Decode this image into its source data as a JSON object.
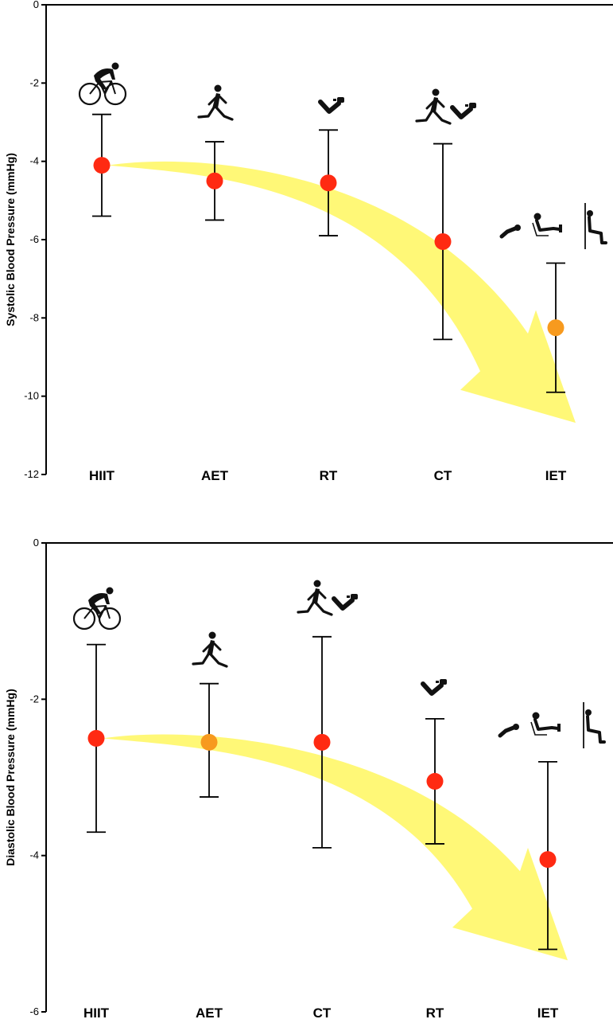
{
  "colors": {
    "point_red": "#FF2A12",
    "point_orange": "#F79A1E",
    "arrow_yellow": "#FFF768",
    "axis": "#000000",
    "silhouette": "#111111"
  },
  "chart_data": [
    {
      "type": "scatter",
      "subtype": "point-estimate-with-error-bars",
      "title": "",
      "ylabel": "Systolic Blood Pressure (mmHg)",
      "xlabel": "",
      "ylim": [
        -12,
        0
      ],
      "yticks": [
        0,
        -2,
        -4,
        -6,
        -8,
        -10,
        -12
      ],
      "yticks_labels": [
        "0",
        "-2",
        "-4",
        "-6",
        "-8",
        "-10",
        "-12"
      ],
      "grid": false,
      "categories": [
        "HIIT",
        "AET",
        "RT",
        "CT",
        "IET"
      ],
      "values": [
        -4.1,
        -4.5,
        -4.55,
        -6.05,
        -8.25
      ],
      "lower": [
        -5.4,
        -5.5,
        -5.9,
        -8.55,
        -9.9
      ],
      "upper": [
        -2.8,
        -3.5,
        -3.2,
        -3.55,
        -6.6
      ],
      "marker_colors": [
        "red",
        "red",
        "red",
        "red",
        "orange"
      ],
      "icons": [
        "cyclist-icon",
        "runner-icon",
        "arm-curl-icon",
        "runner-and-arm-curl-icon",
        "handgrip-legpress-wallsquat-icon"
      ],
      "annotation": "yellow curved arrow indicating increasing reduction from HIIT to IET"
    },
    {
      "type": "scatter",
      "subtype": "point-estimate-with-error-bars",
      "title": "",
      "ylabel": "Diastolic Blood Pressure (mmHg)",
      "xlabel": "",
      "ylim": [
        -6,
        0
      ],
      "yticks": [
        0,
        -2,
        -4,
        -6
      ],
      "yticks_labels": [
        "0",
        "-2",
        "-4",
        "-6"
      ],
      "grid": false,
      "categories": [
        "HIIT",
        "AET",
        "CT",
        "RT",
        "IET"
      ],
      "values": [
        -2.5,
        -2.55,
        -2.55,
        -3.05,
        -4.05
      ],
      "lower": [
        -3.7,
        -3.25,
        -3.9,
        -3.85,
        -5.2
      ],
      "upper": [
        -1.3,
        -1.8,
        -1.2,
        -2.25,
        -2.8
      ],
      "marker_colors": [
        "red",
        "orange",
        "red",
        "red",
        "red"
      ],
      "icons": [
        "cyclist-icon",
        "runner-icon",
        "runner-and-arm-curl-icon",
        "arm-curl-icon",
        "handgrip-legpress-wallsquat-icon"
      ],
      "annotation": "yellow curved arrow indicating increasing reduction from HIIT to IET"
    }
  ]
}
